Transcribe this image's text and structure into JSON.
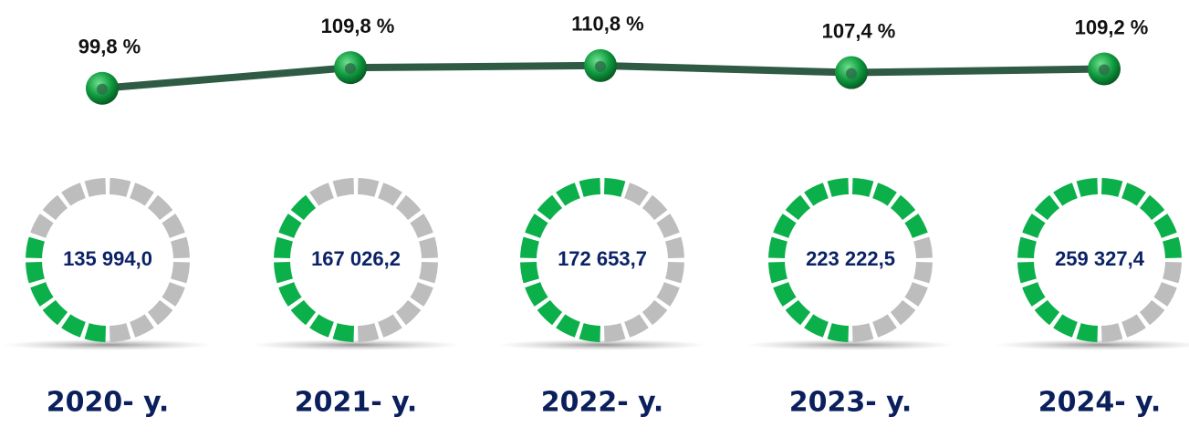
{
  "chart_data": {
    "type": "line",
    "categories": [
      "2020- y.",
      "2021- y.",
      "2022- y.",
      "2023- y.",
      "2024- y."
    ],
    "values": [
      99.8,
      109.8,
      110.8,
      107.4,
      109.2
    ],
    "value_labels": [
      "99,8 %",
      "109,8 %",
      "110,8 %",
      "107,4 %",
      "109,2 %"
    ],
    "color": "#2f5b45",
    "ylim": [
      90,
      120
    ],
    "gauge": {
      "values": [
        135994.0,
        167026.2,
        172653.7,
        223222.5,
        259327.4
      ],
      "value_labels": [
        "135 994,0",
        "167 026,2",
        "172 653,7",
        "223 222,5",
        "259 327,4"
      ],
      "filled": [
        6,
        8,
        11,
        14,
        15
      ],
      "segments": 20,
      "fill_color": "#0bb04a",
      "empty_color": "#bdbdbd"
    }
  }
}
